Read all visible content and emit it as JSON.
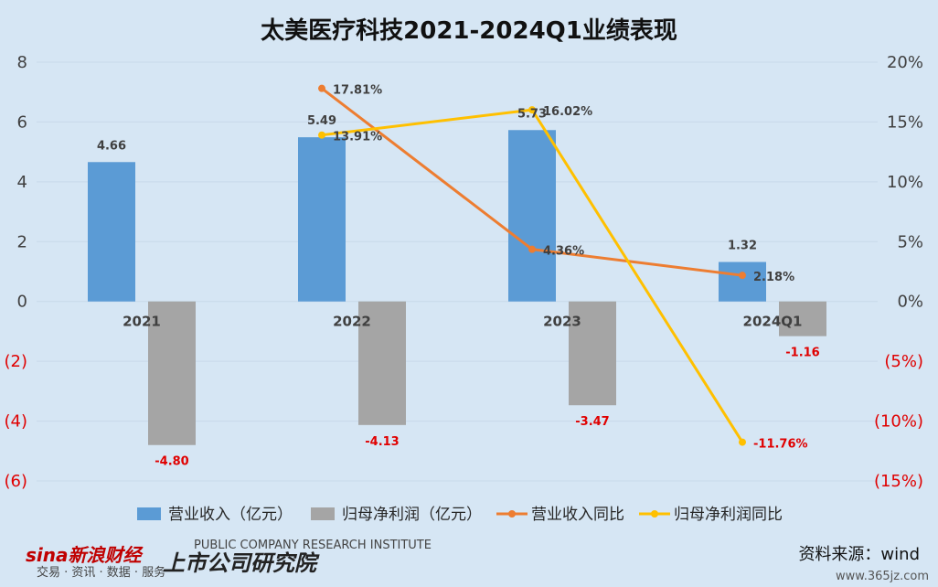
{
  "chart_data": {
    "type": "bar",
    "title": "太美医疗科技2021-2024Q1业绩表现",
    "categories": [
      "2021",
      "2022",
      "2023",
      "2024Q1"
    ],
    "series": [
      {
        "name": "营业收入（亿元）",
        "type": "bar",
        "axis": "left",
        "color": "#5b9bd5",
        "values": [
          4.66,
          5.49,
          5.73,
          1.32
        ],
        "labels": [
          "4.66",
          "5.49",
          "5.73",
          "1.32"
        ]
      },
      {
        "name": "归母净利润（亿元）",
        "type": "bar",
        "axis": "left",
        "color": "#a5a5a5",
        "values": [
          -4.8,
          -4.13,
          -3.47,
          -1.16
        ],
        "labels": [
          "-4.80",
          "-4.13",
          "-3.47",
          "-1.16"
        ]
      },
      {
        "name": "营业收入同比",
        "type": "line",
        "axis": "right",
        "color": "#ed7d31",
        "values": [
          null,
          17.81,
          4.36,
          2.18
        ],
        "labels": [
          "",
          "17.81%",
          "4.36%",
          "2.18%"
        ]
      },
      {
        "name": "归母净利润同比",
        "type": "line",
        "axis": "right",
        "color": "#ffc000",
        "values": [
          null,
          13.91,
          16.02,
          -11.76
        ],
        "labels": [
          "",
          "13.91%",
          "16.02%",
          "-11.76%"
        ]
      }
    ],
    "left_axis": {
      "ylim": [
        -6,
        8
      ],
      "ticks": [
        "8",
        "6",
        "4",
        "2",
        "0",
        "(2)",
        "(4)",
        "(6)"
      ],
      "tick_values": [
        8,
        6,
        4,
        2,
        0,
        -2,
        -4,
        -6
      ]
    },
    "right_axis": {
      "ylim": [
        -15,
        20
      ],
      "ticks": [
        "20%",
        "15%",
        "10%",
        "5%",
        "0%",
        "(5%)",
        "(10%)",
        "(15%)"
      ],
      "tick_values": [
        20,
        15,
        10,
        5,
        0,
        -5,
        -10,
        -15
      ]
    },
    "negative_color": "#e00000",
    "grid": true,
    "legend": "bottom"
  },
  "source_text": "资料来源：wind",
  "watermarks": {
    "sina": "sina新浪财经",
    "sina_sub": "交易 · 资讯 · 数据 · 服务",
    "institute": "上市公司研究院",
    "institute_sub": "PUBLIC COMPANY RESEARCH INSTITUTE",
    "site": "www.365jz.com"
  }
}
